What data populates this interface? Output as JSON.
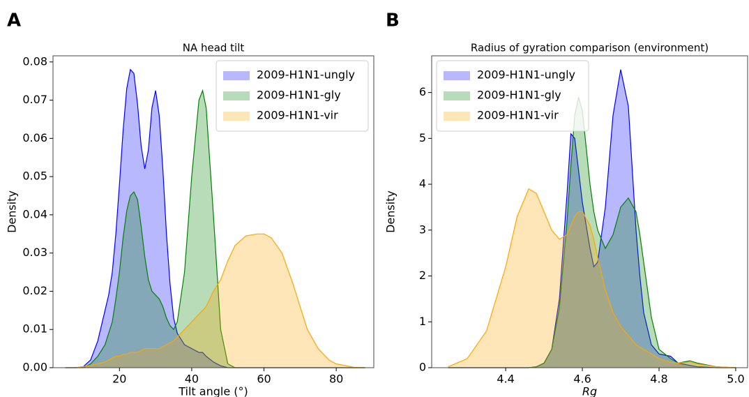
{
  "chart_data": [
    {
      "type": "area",
      "panel_label": "A",
      "title": "NA head tilt",
      "x_label": "Tilt angle (°)",
      "y_label": "Density",
      "x": [
        5,
        8,
        10,
        12,
        14,
        16,
        17,
        18,
        19,
        20,
        21,
        22,
        23,
        24,
        25,
        26,
        27,
        28,
        29,
        30,
        31,
        32,
        33,
        34,
        35,
        36,
        38,
        40,
        42,
        43,
        44,
        46,
        48,
        50,
        52,
        55,
        58,
        60,
        62,
        65,
        68,
        70,
        72,
        75,
        78,
        80,
        85,
        88
      ],
      "series": [
        {
          "name": "2009-H1N1-ungly",
          "color": "#0000ff",
          "values": [
            0,
            0,
            0.0003,
            0.002,
            0.007,
            0.015,
            0.019,
            0.025,
            0.035,
            0.048,
            0.062,
            0.073,
            0.078,
            0.077,
            0.069,
            0.058,
            0.052,
            0.057,
            0.068,
            0.0725,
            0.066,
            0.052,
            0.035,
            0.022,
            0.013,
            0.009,
            0.006,
            0.005,
            0.004,
            0.004,
            0.003,
            0.0015,
            0.0005,
            0,
            0,
            0,
            0,
            0,
            0,
            0,
            0,
            0,
            0,
            0,
            0,
            0,
            0,
            0
          ]
        },
        {
          "name": "2009-H1N1-gly",
          "color": "#008000",
          "values": [
            0,
            0,
            0,
            0.001,
            0.003,
            0.006,
            0.009,
            0.012,
            0.018,
            0.025,
            0.034,
            0.041,
            0.045,
            0.046,
            0.044,
            0.037,
            0.029,
            0.023,
            0.02,
            0.019,
            0.018,
            0.016,
            0.013,
            0.011,
            0.01,
            0.012,
            0.025,
            0.05,
            0.07,
            0.0725,
            0.068,
            0.04,
            0.01,
            0.001,
            0,
            0,
            0,
            0,
            0,
            0,
            0,
            0,
            0,
            0,
            0,
            0,
            0,
            0
          ]
        },
        {
          "name": "2009-H1N1-vir",
          "color": "#ffa500",
          "values": [
            0,
            0,
            0.0003,
            0.0006,
            0.001,
            0.0015,
            0.002,
            0.0025,
            0.003,
            0.003,
            0.0035,
            0.0035,
            0.004,
            0.004,
            0.004,
            0.0045,
            0.005,
            0.005,
            0.005,
            0.005,
            0.005,
            0.0055,
            0.006,
            0.0065,
            0.007,
            0.008,
            0.01,
            0.012,
            0.014,
            0.015,
            0.016,
            0.02,
            0.023,
            0.028,
            0.032,
            0.0345,
            0.035,
            0.035,
            0.034,
            0.03,
            0.022,
            0.016,
            0.01,
            0.005,
            0.002,
            0.001,
            0.0001,
            0
          ]
        }
      ],
      "xlim": [
        1.6,
        90.4
      ],
      "xticks": [
        20,
        40,
        60,
        80
      ],
      "ylim": [
        0,
        0.0816
      ],
      "yticks": [
        {
          "value": 0,
          "label": "0.00"
        },
        0.01,
        0.02,
        0.03,
        0.04,
        0.05,
        0.06,
        0.07,
        0.08
      ],
      "legend": "upper right"
    },
    {
      "type": "area",
      "panel_label": "B",
      "title": "Radius of gyration comparison (environment)",
      "x_label": "Rg",
      "y_label": "Density",
      "x": [
        4.25,
        4.3,
        4.35,
        4.4,
        4.43,
        4.46,
        4.48,
        4.5,
        4.52,
        4.54,
        4.56,
        4.57,
        4.58,
        4.59,
        4.6,
        4.62,
        4.63,
        4.64,
        4.66,
        4.68,
        4.7,
        4.72,
        4.74,
        4.75,
        4.76,
        4.78,
        4.8,
        4.83,
        4.85,
        4.88,
        4.9,
        4.95,
        5.0
      ],
      "series": [
        {
          "name": "2009-H1N1-ungly",
          "color": "#0000ff",
          "values": [
            0,
            0,
            0,
            0,
            0,
            0,
            0.02,
            0.1,
            0.4,
            1.5,
            3.8,
            5.1,
            5.0,
            4.3,
            3.6,
            2.6,
            2.2,
            2.3,
            3.5,
            5.5,
            6.5,
            5.7,
            3.0,
            2.0,
            1.2,
            0.5,
            0.3,
            0.25,
            0.1,
            0.05,
            0.02,
            0,
            0
          ]
        },
        {
          "name": "2009-H1N1-gly",
          "color": "#008000",
          "values": [
            0,
            0,
            0,
            0,
            0,
            0,
            0.02,
            0.1,
            0.4,
            1.3,
            3.2,
            4.4,
            5.5,
            5.9,
            5.6,
            4.0,
            3.4,
            3.0,
            2.6,
            2.9,
            3.5,
            3.7,
            3.4,
            2.9,
            2.3,
            1.1,
            0.4,
            0.2,
            0.1,
            0.15,
            0.1,
            0.02,
            0
          ]
        },
        {
          "name": "2009-H1N1-vir",
          "color": "#ffa500",
          "values": [
            0.02,
            0.2,
            0.8,
            2.2,
            3.3,
            3.9,
            3.8,
            3.4,
            3.0,
            2.8,
            2.9,
            3.1,
            3.3,
            3.4,
            3.4,
            3.1,
            2.8,
            2.4,
            1.7,
            1.2,
            0.9,
            0.7,
            0.5,
            0.45,
            0.4,
            0.3,
            0.2,
            0.12,
            0.1,
            0.12,
            0.08,
            0.02,
            0
          ]
        }
      ],
      "xlim": [
        4.207,
        5.031
      ],
      "xticks": [
        4.4,
        4.6,
        4.8,
        {
          "value": 5,
          "label": "5.0"
        }
      ],
      "ylim": [
        0,
        6.8
      ],
      "yticks": [
        0,
        1,
        2,
        3,
        4,
        5,
        6
      ],
      "legend": "upper left"
    }
  ]
}
